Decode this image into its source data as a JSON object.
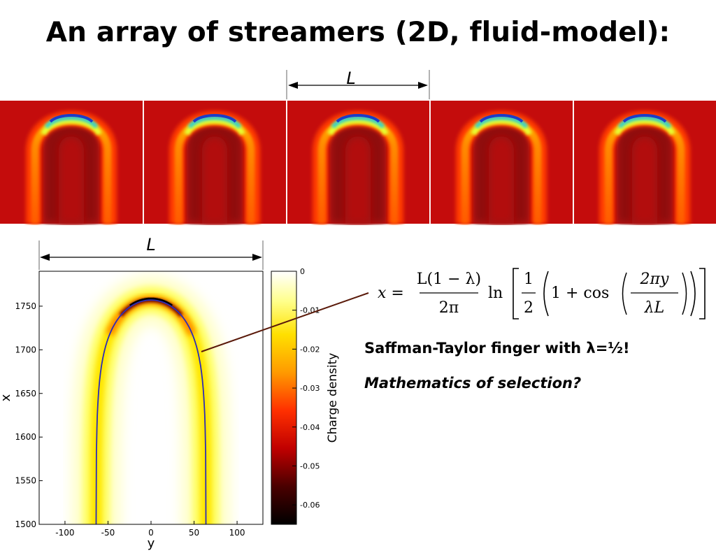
{
  "slide": {
    "title": "An array of streamers (2D, fluid-model):",
    "top_strip": {
      "period_label": "L",
      "panel_count": 5
    },
    "notes": {
      "line1": "Saffman-Taylor finger with λ=½!",
      "line2": "Mathematics of selection?"
    },
    "formula": {
      "lhs": "x =",
      "num": "L(1 − λ)",
      "den": "2π",
      "ln": "ln",
      "half_num": "1",
      "half_den": "2",
      "one_plus_cos": "1 + cos",
      "arg_num": "2πy",
      "arg_den": "λL"
    }
  },
  "chart_data": {
    "type": "heatmap",
    "title": "",
    "xlabel": "y",
    "ylabel": "x",
    "xlim": [
      -130,
      130
    ],
    "ylim": [
      1500,
      1790
    ],
    "x_ticks": [
      -100,
      -50,
      0,
      50,
      100
    ],
    "y_ticks": [
      1500,
      1550,
      1600,
      1650,
      1700,
      1750
    ],
    "period_label": "L",
    "colorbar": {
      "label": "Charge density",
      "range": [
        -0.065,
        0
      ],
      "ticks": [
        0,
        -0.01,
        -0.02,
        -0.03,
        -0.04,
        -0.05,
        -0.06
      ],
      "tick_labels": [
        "0",
        "-0.01",
        "-0.02",
        "-0.03",
        "-0.04",
        "-0.05",
        "-0.06"
      ],
      "colors": [
        "#ffffff",
        "#ffff66",
        "#ffd000",
        "#ff7a00",
        "#ff1a00",
        "#a00000",
        "#3a0000",
        "#000000"
      ]
    },
    "overlay_curve": {
      "name": "",
      "color": "#2c2cb8",
      "lambda": 0.5,
      "L": 256,
      "tip_x": 1757
    }
  }
}
